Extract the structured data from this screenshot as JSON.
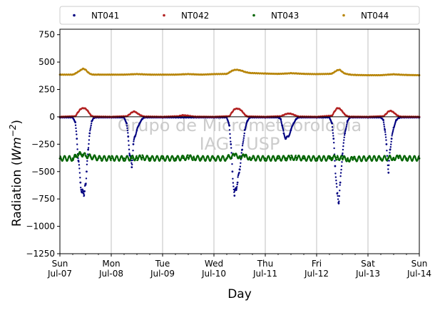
{
  "chart_data": {
    "type": "scatter",
    "title": "",
    "xlabel": "Day",
    "ylabel_prefix": "Radiation (",
    "ylabel_unit": "Wm",
    "ylabel_exp": "−2",
    "ylabel_suffix": ")",
    "xlim": [
      0,
      7
    ],
    "ylim": [
      -1250,
      800
    ],
    "yticks": [
      750,
      500,
      250,
      0,
      -250,
      -500,
      -750,
      -1000,
      -1250
    ],
    "ytick_labels": [
      "750",
      "500",
      "250",
      "0",
      "−250",
      "−500",
      "−750",
      "−1000",
      "−1250"
    ],
    "xtick_days": [
      "Sun",
      "Mon",
      "Tue",
      "Wed",
      "Thu",
      "Fri",
      "Sat",
      "Sun"
    ],
    "xtick_dates": [
      "Jul-07",
      "Jul-08",
      "Jul-09",
      "Jul-10",
      "Jul-11",
      "Jul-12",
      "Jul-13",
      "Jul-14"
    ],
    "grid": "vertical",
    "legend": {
      "placement": "top",
      "columns": 4
    },
    "watermark_line1": "Grupo de Micrometeorologia",
    "watermark_line2": "IAG - USP",
    "series": [
      {
        "name": "NT041",
        "color": "#000080",
        "x": [
          0.0,
          0.25,
          0.3,
          0.33,
          0.36,
          0.4,
          0.43,
          0.46,
          0.48,
          0.5,
          0.52,
          0.55,
          0.58,
          0.62,
          0.66,
          0.7,
          0.75,
          1.0,
          1.25,
          1.3,
          1.33,
          1.36,
          1.4,
          1.43,
          1.46,
          1.5,
          1.55,
          1.6,
          1.65,
          1.7,
          2.0,
          2.25,
          2.3,
          2.35,
          2.4,
          2.45,
          2.5,
          2.55,
          2.6,
          2.65,
          2.7,
          3.0,
          3.25,
          3.3,
          3.33,
          3.36,
          3.4,
          3.43,
          3.46,
          3.5,
          3.55,
          3.6,
          3.65,
          3.7,
          4.0,
          4.25,
          4.3,
          4.33,
          4.36,
          4.4,
          4.45,
          4.5,
          4.55,
          4.6,
          4.65,
          4.7,
          5.0,
          5.25,
          5.3,
          5.33,
          5.36,
          5.4,
          5.43,
          5.46,
          5.5,
          5.55,
          5.6,
          5.65,
          5.7,
          6.0,
          6.25,
          6.3,
          6.33,
          6.36,
          6.4,
          6.43,
          6.46,
          6.5,
          6.55,
          6.6,
          6.65,
          6.7,
          7.0
        ],
        "y": [
          -5,
          -5,
          -50,
          -200,
          -400,
          -600,
          -690,
          -700,
          -680,
          -620,
          -500,
          -300,
          -150,
          -40,
          -10,
          -5,
          -5,
          -5,
          -5,
          -60,
          -180,
          -350,
          -460,
          -250,
          -180,
          -120,
          -60,
          -20,
          -5,
          -5,
          -5,
          -5,
          -5,
          -5,
          -5,
          -5,
          -5,
          -5,
          -5,
          -5,
          -5,
          -5,
          -5,
          -80,
          -250,
          -500,
          -720,
          -650,
          -600,
          -480,
          -300,
          -120,
          -40,
          -5,
          -5,
          -5,
          -20,
          -80,
          -150,
          -200,
          -180,
          -120,
          -60,
          -20,
          -5,
          -5,
          -5,
          -5,
          -60,
          -200,
          -450,
          -700,
          -790,
          -600,
          -350,
          -150,
          -40,
          -5,
          -5,
          -5,
          -5,
          -30,
          -120,
          -250,
          -510,
          -300,
          -200,
          -100,
          -30,
          -10,
          -5,
          -5,
          -5
        ]
      },
      {
        "name": "NT042",
        "color": "#b22222",
        "x": [
          0.0,
          0.3,
          0.35,
          0.4,
          0.45,
          0.5,
          0.55,
          0.6,
          0.65,
          1.0,
          1.3,
          1.35,
          1.4,
          1.45,
          1.5,
          1.55,
          1.6,
          1.65,
          2.0,
          2.3,
          2.35,
          2.4,
          2.45,
          2.5,
          2.55,
          2.6,
          2.65,
          3.0,
          3.3,
          3.35,
          3.4,
          3.45,
          3.5,
          3.55,
          3.6,
          3.65,
          4.0,
          4.3,
          4.35,
          4.4,
          4.45,
          4.5,
          4.55,
          4.6,
          4.65,
          5.0,
          5.3,
          5.35,
          5.4,
          5.45,
          5.5,
          5.55,
          5.6,
          5.65,
          6.0,
          6.3,
          6.35,
          6.4,
          6.45,
          6.5,
          6.55,
          6.6,
          6.65,
          7.0
        ],
        "y": [
          0,
          5,
          40,
          70,
          80,
          75,
          50,
          15,
          2,
          0,
          5,
          20,
          40,
          50,
          35,
          20,
          8,
          2,
          0,
          5,
          10,
          15,
          12,
          10,
          6,
          3,
          1,
          0,
          5,
          40,
          70,
          75,
          70,
          50,
          20,
          3,
          0,
          5,
          15,
          25,
          30,
          28,
          20,
          10,
          2,
          0,
          10,
          50,
          80,
          75,
          50,
          20,
          5,
          1,
          0,
          5,
          25,
          50,
          55,
          40,
          20,
          5,
          1,
          0
        ]
      },
      {
        "name": "NT043",
        "color": "#006400",
        "x": [
          0.0,
          0.25,
          0.3,
          0.35,
          0.4,
          0.45,
          0.5,
          0.55,
          0.6,
          0.65,
          0.7,
          0.75,
          0.8,
          1.0,
          1.25,
          1.4,
          1.5,
          1.6,
          1.75,
          2.0,
          2.25,
          2.4,
          2.5,
          2.6,
          2.75,
          3.0,
          3.25,
          3.3,
          3.4,
          3.5,
          3.6,
          3.7,
          3.75,
          4.0,
          4.25,
          4.4,
          4.5,
          4.6,
          4.75,
          5.0,
          5.25,
          5.3,
          5.4,
          5.5,
          5.6,
          5.7,
          5.75,
          6.0,
          6.25,
          6.4,
          6.5,
          6.6,
          6.75,
          7.0
        ],
        "y": [
          -380,
          -380,
          -365,
          -345,
          -340,
          -345,
          -355,
          -360,
          -365,
          -370,
          -375,
          -378,
          -380,
          -380,
          -380,
          -378,
          -375,
          -372,
          -380,
          -380,
          -380,
          -376,
          -372,
          -374,
          -380,
          -380,
          -380,
          -365,
          -355,
          -360,
          -365,
          -372,
          -378,
          -380,
          -380,
          -378,
          -375,
          -373,
          -380,
          -380,
          -380,
          -375,
          -370,
          -380,
          -385,
          -390,
          -385,
          -380,
          -380,
          -376,
          -374,
          -375,
          -380,
          -380
        ]
      },
      {
        "name": "NT044",
        "color": "#b8860b",
        "x": [
          0.0,
          0.25,
          0.3,
          0.35,
          0.4,
          0.45,
          0.5,
          0.55,
          0.6,
          0.65,
          0.75,
          1.0,
          1.25,
          1.4,
          1.5,
          1.6,
          1.75,
          2.0,
          2.25,
          2.4,
          2.5,
          2.6,
          2.75,
          3.0,
          3.25,
          3.3,
          3.35,
          3.4,
          3.45,
          3.5,
          3.55,
          3.6,
          3.7,
          4.0,
          4.25,
          4.4,
          4.5,
          4.6,
          4.75,
          5.0,
          5.25,
          5.3,
          5.35,
          5.4,
          5.45,
          5.5,
          5.55,
          5.65,
          5.75,
          6.0,
          6.25,
          6.4,
          6.5,
          6.6,
          6.75,
          7.0
        ],
        "y": [
          385,
          385,
          395,
          410,
          425,
          440,
          430,
          405,
          390,
          385,
          385,
          385,
          385,
          388,
          390,
          388,
          385,
          385,
          385,
          388,
          390,
          388,
          385,
          390,
          392,
          405,
          420,
          428,
          430,
          425,
          420,
          410,
          400,
          395,
          392,
          395,
          398,
          396,
          392,
          390,
          392,
          395,
          410,
          425,
          430,
          410,
          395,
          385,
          382,
          380,
          380,
          385,
          388,
          385,
          382,
          380
        ]
      }
    ]
  }
}
